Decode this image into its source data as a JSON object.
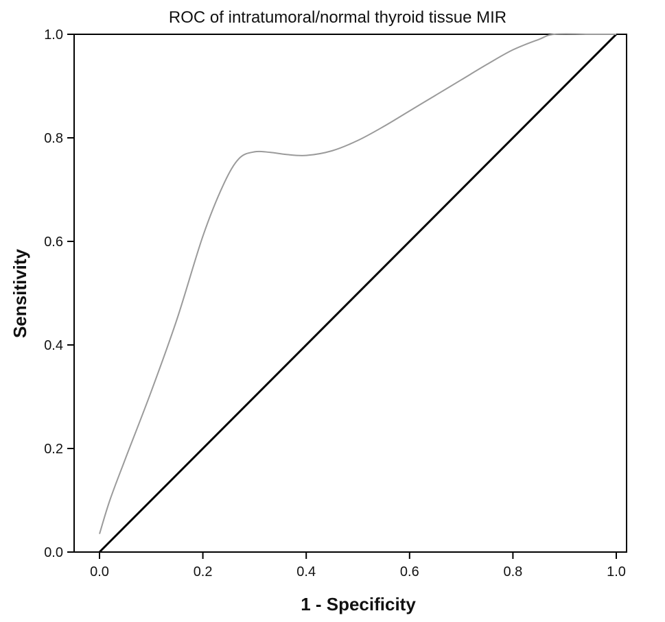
{
  "chart_data": {
    "type": "line",
    "title": "ROC of  intratumoral/normal thyroid tissue MIR",
    "xlabel": "1 - Specificity",
    "ylabel": "Sensitivity",
    "xlim": [
      0,
      1
    ],
    "ylim": [
      0,
      1
    ],
    "x_ticks": [
      "0.0",
      "0.2",
      "0.4",
      "0.6",
      "0.8",
      "1.0"
    ],
    "y_ticks": [
      "0.0",
      "0.2",
      "0.4",
      "0.6",
      "0.8",
      "1.0"
    ],
    "grid": false,
    "legend": "none",
    "series": [
      {
        "x": [
          0.0,
          0.02,
          0.05,
          0.1,
          0.15,
          0.2,
          0.24,
          0.27,
          0.3,
          0.33,
          0.36,
          0.4,
          0.45,
          0.5,
          0.55,
          0.6,
          0.65,
          0.7,
          0.75,
          0.8,
          0.85,
          0.88,
          0.95,
          1.0
        ],
        "y": [
          0.035,
          0.1,
          0.18,
          0.31,
          0.45,
          0.61,
          0.71,
          0.76,
          0.773,
          0.772,
          0.768,
          0.766,
          0.775,
          0.795,
          0.822,
          0.852,
          0.882,
          0.912,
          0.942,
          0.97,
          0.99,
          1.0,
          1.0,
          1.0
        ],
        "color": "#9a9a9a"
      },
      {
        "x": [
          0.0,
          1.0
        ],
        "y": [
          0.0,
          1.0
        ],
        "color": "#000000"
      }
    ]
  }
}
